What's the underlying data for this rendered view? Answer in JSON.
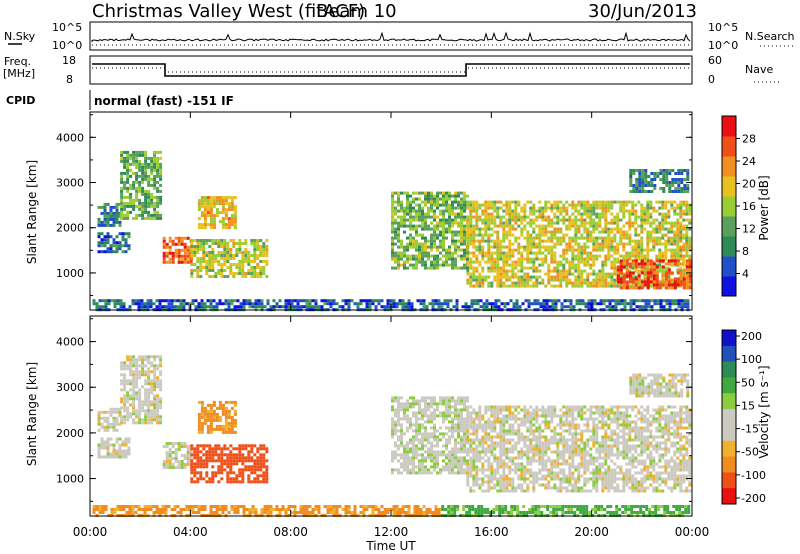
{
  "header": {
    "title": "Christmas Valley West (fitACF)",
    "beam": "Beam 10",
    "date": "30/Jun/2013"
  },
  "panels": {
    "nsky": {
      "label": "N.Sky",
      "right_label": "N.Search",
      "ticks": [
        "10^5",
        "10^0"
      ],
      "right_ticks": [
        "10^5",
        "10^0"
      ]
    },
    "freq": {
      "label_line1": "Freq.",
      "label_line2": "[MHz]",
      "ticks": [
        "18",
        "8"
      ],
      "right_ticks": [
        "60",
        "0"
      ],
      "right_label": "Nave"
    },
    "cpid": {
      "label": "CPID",
      "text": "normal (fast) -151 IF"
    }
  },
  "colors": {
    "power": [
      "#1010e0",
      "#2050c8",
      "#2e8b57",
      "#5aa05a",
      "#9acd32",
      "#e8c020",
      "#f09020",
      "#f05018",
      "#e81010"
    ],
    "velocity": [
      "#e81010",
      "#f05018",
      "#f08c20",
      "#f0b030",
      "#cccac0",
      "#cccac0",
      "#8ccc40",
      "#40a840",
      "#2e8b57",
      "#2050b8",
      "#1010c8"
    ]
  },
  "chart_data": [
    {
      "type": "heatmap",
      "name": "power",
      "ylabel": "Slant Range [km]",
      "yticks": [
        "1000",
        "2000",
        "3000",
        "4000"
      ],
      "ylim": [
        180,
        4560
      ],
      "xlim": [
        0,
        24
      ],
      "colorbar_label": "Power [dB]",
      "colorbar_ticks": [
        "4",
        "8",
        "12",
        "16",
        "20",
        "24",
        "28"
      ],
      "colorbar_range": [
        0,
        32
      ],
      "regions": [
        {
          "t0": 0.3,
          "t1": 1.2,
          "r0": 2050,
          "r1": 2550,
          "v": 9
        },
        {
          "t0": 1.2,
          "t1": 2.8,
          "r0": 2200,
          "r1": 3700,
          "v": 13
        },
        {
          "t0": 0.3,
          "t1": 1.5,
          "r0": 1500,
          "r1": 1900,
          "v": 7
        },
        {
          "t0": 2.9,
          "t1": 4.0,
          "r0": 1250,
          "r1": 1800,
          "v": 26
        },
        {
          "t0": 4.3,
          "t1": 5.8,
          "r0": 2000,
          "r1": 2700,
          "v": 20
        },
        {
          "t0": 4.0,
          "t1": 7.0,
          "r0": 950,
          "r1": 1750,
          "v": 17
        },
        {
          "t0": 12.0,
          "t1": 15.0,
          "r0": 1100,
          "r1": 2800,
          "v": 14
        },
        {
          "t0": 15.0,
          "t1": 23.9,
          "r0": 700,
          "r1": 2600,
          "v": 18
        },
        {
          "t0": 21.0,
          "t1": 23.9,
          "r0": 700,
          "r1": 1300,
          "v": 27
        },
        {
          "t0": 21.5,
          "t1": 23.8,
          "r0": 2800,
          "r1": 3300,
          "v": 9
        },
        {
          "t0": 0.1,
          "t1": 23.9,
          "r0": 200,
          "r1": 420,
          "v": 6
        }
      ]
    },
    {
      "type": "heatmap",
      "name": "velocity",
      "xlabel": "Time UT",
      "xticks": [
        "00:00",
        "04:00",
        "08:00",
        "12:00",
        "16:00",
        "20:00",
        "00:00"
      ],
      "ylabel": "Slant Range [km]",
      "yticks": [
        "1000",
        "2000",
        "3000",
        "4000"
      ],
      "ylim": [
        180,
        4560
      ],
      "xlim": [
        0,
        24
      ],
      "colorbar_label": "Velocity [m s⁻¹]",
      "colorbar_ticks": [
        "200",
        "100",
        "50",
        "15",
        "-15",
        "-50",
        "-100",
        "-200"
      ],
      "regions": [
        {
          "t0": 0.3,
          "t1": 1.2,
          "r0": 2050,
          "r1": 2550,
          "v": 0
        },
        {
          "t0": 1.2,
          "t1": 2.8,
          "r0": 2200,
          "r1": 3700,
          "v": 0
        },
        {
          "t0": 0.3,
          "t1": 1.5,
          "r0": 1500,
          "r1": 1900,
          "v": 0
        },
        {
          "t0": 2.9,
          "t1": 4.0,
          "r0": 1250,
          "r1": 1800,
          "v": 0
        },
        {
          "t0": 4.3,
          "t1": 5.8,
          "r0": 2000,
          "r1": 2700,
          "v": -40
        },
        {
          "t0": 4.0,
          "t1": 7.0,
          "r0": 950,
          "r1": 1750,
          "v": -110
        },
        {
          "t0": 12.0,
          "t1": 15.0,
          "r0": 1100,
          "r1": 2800,
          "v": 5
        },
        {
          "t0": 15.0,
          "t1": 23.9,
          "r0": 700,
          "r1": 2600,
          "v": 0
        },
        {
          "t0": 21.5,
          "t1": 23.8,
          "r0": 2800,
          "r1": 3300,
          "v": 0
        },
        {
          "t0": 0.1,
          "t1": 14.0,
          "r0": 200,
          "r1": 420,
          "v": -40
        },
        {
          "t0": 14.0,
          "t1": 23.9,
          "r0": 200,
          "r1": 420,
          "v": 40
        }
      ]
    }
  ]
}
